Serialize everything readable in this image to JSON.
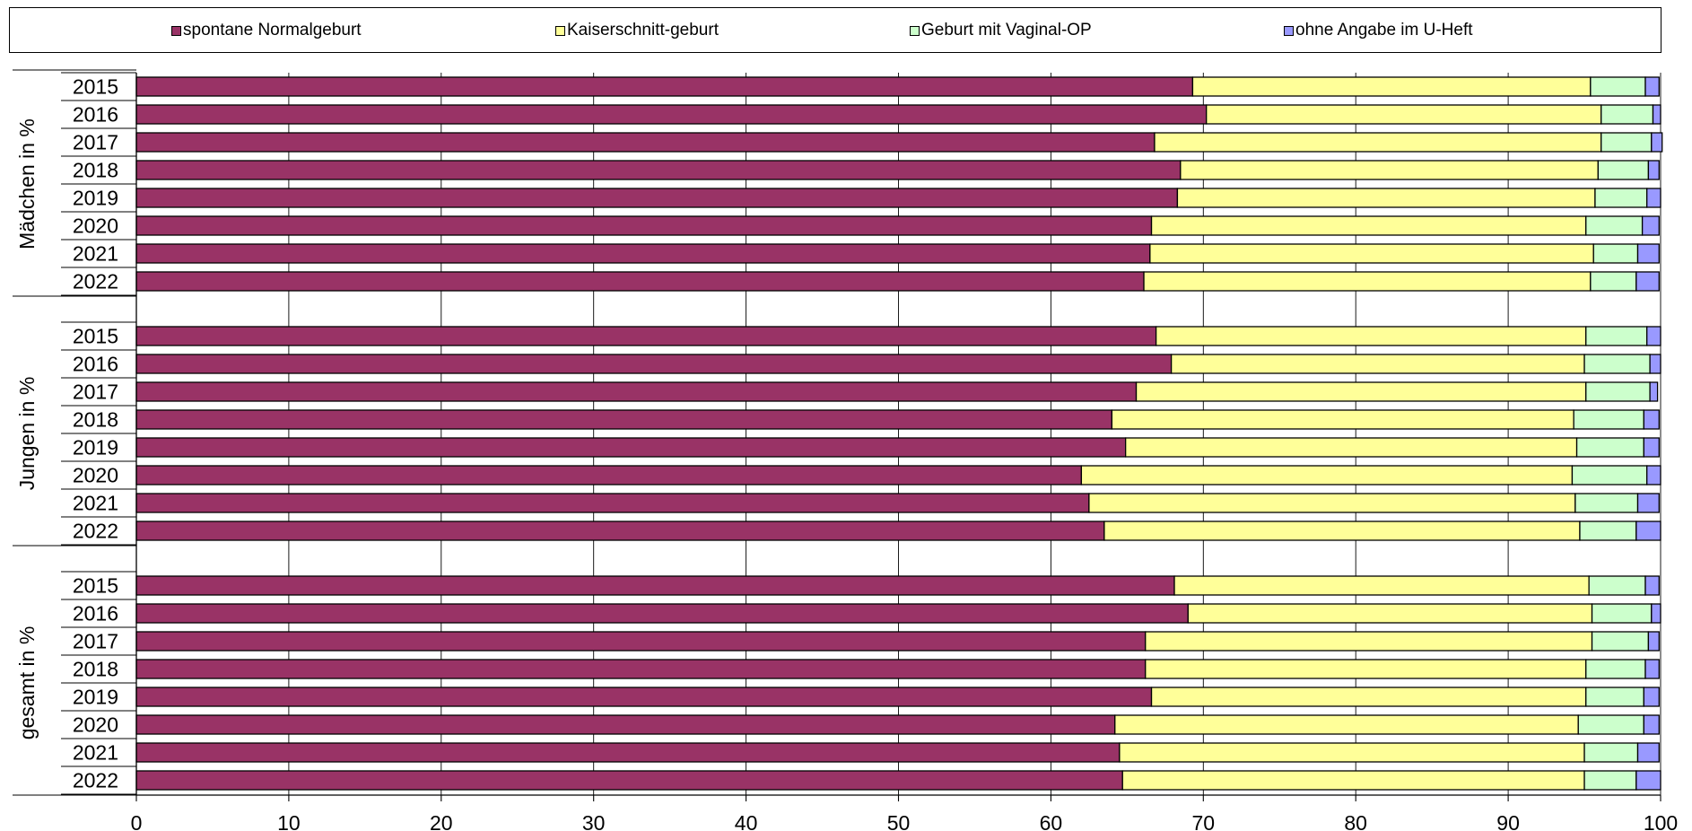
{
  "chart_data": {
    "type": "bar",
    "orientation": "horizontal",
    "stacked": true,
    "xlim": [
      0,
      100
    ],
    "xticks": [
      0,
      10,
      20,
      30,
      40,
      50,
      60,
      70,
      80,
      90,
      100
    ],
    "grid": "vertical",
    "legend_position": "top",
    "series": [
      {
        "name": "spontane Normalgeburt",
        "color": "#993366"
      },
      {
        "name": "Kaiserschnitt-geburt",
        "color": "#FFFF99"
      },
      {
        "name": "Geburt mit Vaginal-OP",
        "color": "#CCFFCC"
      },
      {
        "name": "ohne Angabe im U-Heft",
        "color": "#9999FF"
      }
    ],
    "groups": [
      {
        "label": "Mädchen in %",
        "rows": [
          {
            "year": "2015",
            "values": [
              69.3,
              26.1,
              3.6,
              0.9
            ]
          },
          {
            "year": "2016",
            "values": [
              70.2,
              25.9,
              3.4,
              0.5
            ]
          },
          {
            "year": "2017",
            "values": [
              66.8,
              29.3,
              3.3,
              0.7
            ]
          },
          {
            "year": "2018",
            "values": [
              68.5,
              27.4,
              3.3,
              0.7
            ]
          },
          {
            "year": "2019",
            "values": [
              68.3,
              27.4,
              3.4,
              0.9
            ]
          },
          {
            "year": "2020",
            "values": [
              66.6,
              28.5,
              3.7,
              1.1
            ]
          },
          {
            "year": "2021",
            "values": [
              66.5,
              29.1,
              2.9,
              1.4
            ]
          },
          {
            "year": "2022",
            "values": [
              66.1,
              29.3,
              3.0,
              1.5
            ]
          }
        ]
      },
      {
        "label": "Jungen in %",
        "rows": [
          {
            "year": "2015",
            "values": [
              66.9,
              28.2,
              4.0,
              0.9
            ]
          },
          {
            "year": "2016",
            "values": [
              67.9,
              27.1,
              4.3,
              0.7
            ]
          },
          {
            "year": "2017",
            "values": [
              65.6,
              29.5,
              4.2,
              0.5
            ]
          },
          {
            "year": "2018",
            "values": [
              64.0,
              30.3,
              4.6,
              1.0
            ]
          },
          {
            "year": "2019",
            "values": [
              64.9,
              29.6,
              4.4,
              1.0
            ]
          },
          {
            "year": "2020",
            "values": [
              62.0,
              32.2,
              4.9,
              0.9
            ]
          },
          {
            "year": "2021",
            "values": [
              62.5,
              31.9,
              4.1,
              1.4
            ]
          },
          {
            "year": "2022",
            "values": [
              63.5,
              31.2,
              3.7,
              1.6
            ]
          }
        ]
      },
      {
        "label": "gesamt in %",
        "rows": [
          {
            "year": "2015",
            "values": [
              68.1,
              27.2,
              3.7,
              0.9
            ]
          },
          {
            "year": "2016",
            "values": [
              69.0,
              26.5,
              3.9,
              0.6
            ]
          },
          {
            "year": "2017",
            "values": [
              66.2,
              29.3,
              3.7,
              0.7
            ]
          },
          {
            "year": "2018",
            "values": [
              66.2,
              28.9,
              3.9,
              0.9
            ]
          },
          {
            "year": "2019",
            "values": [
              66.6,
              28.5,
              3.8,
              1.0
            ]
          },
          {
            "year": "2020",
            "values": [
              64.2,
              30.4,
              4.3,
              1.0
            ]
          },
          {
            "year": "2021",
            "values": [
              64.5,
              30.5,
              3.5,
              1.4
            ]
          },
          {
            "year": "2022",
            "values": [
              64.7,
              30.3,
              3.4,
              1.6
            ]
          }
        ]
      }
    ]
  }
}
